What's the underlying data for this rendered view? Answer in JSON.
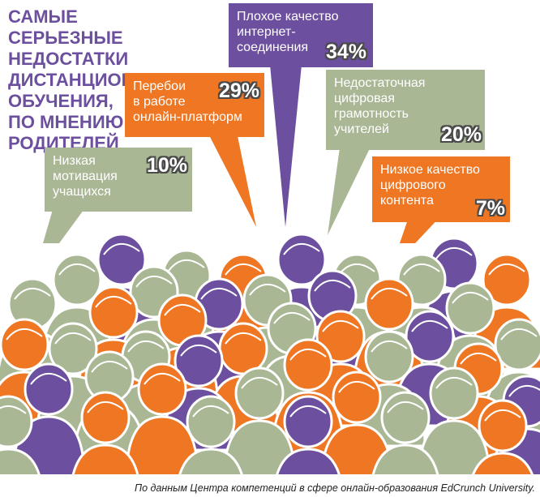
{
  "title": "Самые серьезные\nнедостатки\nдистанционного\nобучения,\nпо мнению\nродителей",
  "chart_data": {
    "type": "bar",
    "title": "Самые серьезные недостатки дистанционного обучения, по мнению родителей",
    "unit": "%",
    "categories": [
      "Плохое качество\nинтернет-\nсоединения",
      "Перебои\nв работе\nонлайн-платформ",
      "Недостаточная\nцифровая\nграмотность\nучителей",
      "Низкая\nмотивация\nучащихся",
      "Низкое качество\nцифрового\nконтента"
    ],
    "values": [
      34,
      29,
      20,
      10,
      7
    ],
    "value_labels": [
      "34%",
      "29%",
      "20%",
      "10%",
      "7%"
    ],
    "colors": [
      "#6c4f9e",
      "#ef7622",
      "#a9b795",
      "#a9b795",
      "#ef7622"
    ]
  },
  "colors": {
    "purple": "#6c4f9e",
    "orange": "#ef7622",
    "sage": "#a9b795"
  },
  "source": "По данным Центра компетенций в сфере онлайн-образования EdCrunch University."
}
